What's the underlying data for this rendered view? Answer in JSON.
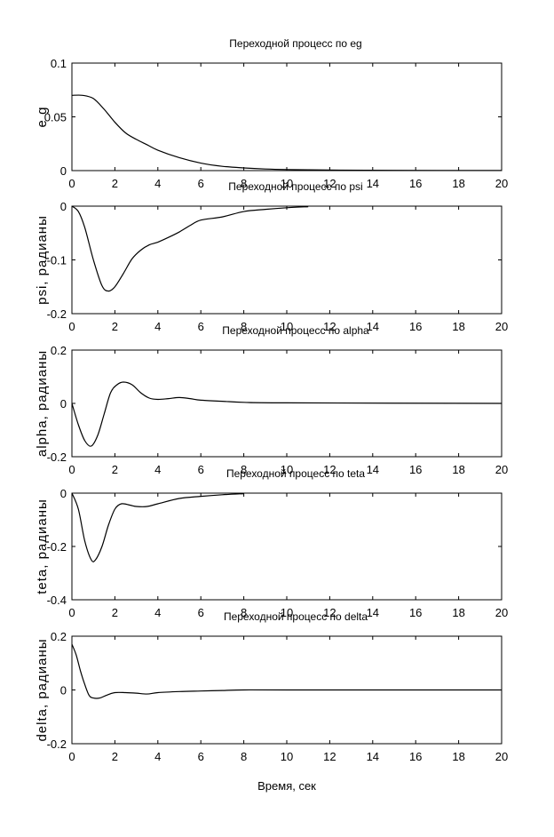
{
  "chart_data": [
    {
      "type": "line",
      "title": "Переходной процесс по eg",
      "xlabel": "",
      "ylabel": "e g",
      "xlim": [
        0,
        20
      ],
      "ylim": [
        0,
        0.1
      ],
      "xticks": [
        0,
        2,
        4,
        6,
        8,
        10,
        12,
        14,
        16,
        18,
        20
      ],
      "xtick_labels": [
        "0",
        "2",
        "4",
        "6",
        "8",
        "10",
        "12",
        "14",
        "16",
        "18",
        "20"
      ],
      "yticks": [
        0,
        0.05,
        0.1
      ],
      "ytick_labels": [
        "0",
        "0.05",
        "0.1"
      ],
      "grid": false,
      "series": [
        {
          "x": [
            0,
            0.5,
            1,
            1.5,
            2,
            2.5,
            3,
            3.5,
            4,
            5,
            6,
            7,
            8,
            9,
            10,
            12,
            15,
            20
          ],
          "y": [
            0.07,
            0.07,
            0.067,
            0.057,
            0.045,
            0.035,
            0.029,
            0.024,
            0.019,
            0.012,
            0.007,
            0.004,
            0.0025,
            0.0015,
            0.001,
            0.0005,
            0.0002,
            0.0001
          ]
        }
      ]
    },
    {
      "type": "line",
      "title": "Переходной процесс по psi",
      "xlabel": "",
      "ylabel": "psi, радианы",
      "xlim": [
        0,
        20
      ],
      "ylim": [
        -0.2,
        0
      ],
      "xticks": [
        0,
        2,
        4,
        6,
        8,
        10,
        12,
        14,
        16,
        18,
        20
      ],
      "xtick_labels": [
        "0",
        "2",
        "4",
        "6",
        "8",
        "10",
        "12",
        "14",
        "16",
        "18",
        "20"
      ],
      "yticks": [
        -0.2,
        -0.1,
        0
      ],
      "ytick_labels": [
        "-0.2",
        "-0.1",
        "0"
      ],
      "grid": false,
      "series": [
        {
          "x": [
            0,
            0.3,
            0.6,
            1,
            1.4,
            1.7,
            2,
            2.4,
            2.8,
            3.2,
            3.6,
            4,
            4.5,
            5,
            5.5,
            6,
            7,
            8,
            9,
            10,
            11
          ],
          "y": [
            0,
            -0.01,
            -0.04,
            -0.1,
            -0.148,
            -0.158,
            -0.15,
            -0.125,
            -0.098,
            -0.082,
            -0.072,
            -0.067,
            -0.058,
            -0.048,
            -0.036,
            -0.026,
            -0.02,
            -0.01,
            -0.006,
            -0.003,
            -0.001
          ]
        }
      ]
    },
    {
      "type": "line",
      "title": "Переходной процесс по alpha",
      "xlabel": "",
      "ylabel": "alpha, радианы",
      "xlim": [
        0,
        20
      ],
      "ylim": [
        -0.2,
        0.2
      ],
      "xticks": [
        0,
        2,
        4,
        6,
        8,
        10,
        12,
        14,
        16,
        18,
        20
      ],
      "xtick_labels": [
        "0",
        "2",
        "4",
        "6",
        "8",
        "10",
        "12",
        "14",
        "16",
        "18",
        "20"
      ],
      "yticks": [
        -0.2,
        0,
        0.2
      ],
      "ytick_labels": [
        "-0.2",
        "0",
        "0.2"
      ],
      "grid": false,
      "series": [
        {
          "x": [
            0,
            0.3,
            0.6,
            0.9,
            1.2,
            1.5,
            1.8,
            2.1,
            2.4,
            2.8,
            3.2,
            3.6,
            4,
            4.5,
            5,
            5.5,
            6,
            7,
            8,
            10,
            20
          ],
          "y": [
            0,
            -0.08,
            -0.14,
            -0.16,
            -0.12,
            -0.04,
            0.04,
            0.07,
            0.08,
            0.07,
            0.04,
            0.02,
            0.015,
            0.018,
            0.022,
            0.018,
            0.012,
            0.008,
            0.004,
            0.002,
            0
          ]
        }
      ]
    },
    {
      "type": "line",
      "title": "Переходной процесс по teta",
      "xlabel": "",
      "ylabel": "teta, радианы",
      "xlim": [
        0,
        20
      ],
      "ylim": [
        -0.4,
        0
      ],
      "xticks": [
        0,
        2,
        4,
        6,
        8,
        10,
        12,
        14,
        16,
        18,
        20
      ],
      "xtick_labels": [
        "0",
        "2",
        "4",
        "6",
        "8",
        "10",
        "12",
        "14",
        "16",
        "18",
        "20"
      ],
      "yticks": [
        -0.4,
        -0.2,
        0
      ],
      "ytick_labels": [
        "-0.4",
        "-0.2",
        "0"
      ],
      "grid": false,
      "series": [
        {
          "x": [
            0,
            0.3,
            0.6,
            0.9,
            1.1,
            1.4,
            1.7,
            2,
            2.3,
            2.7,
            3,
            3.5,
            4,
            5,
            6,
            7,
            8
          ],
          "y": [
            0,
            -0.06,
            -0.18,
            -0.25,
            -0.25,
            -0.2,
            -0.12,
            -0.06,
            -0.04,
            -0.045,
            -0.05,
            -0.05,
            -0.04,
            -0.02,
            -0.012,
            -0.006,
            -0.002
          ]
        }
      ]
    },
    {
      "type": "line",
      "title": "Переходной процесс по delta",
      "xlabel": "Время, сек",
      "ylabel": "delta, радианы",
      "xlim": [
        0,
        20
      ],
      "ylim": [
        -0.2,
        0.2
      ],
      "xticks": [
        0,
        2,
        4,
        6,
        8,
        10,
        12,
        14,
        16,
        18,
        20
      ],
      "xtick_labels": [
        "0",
        "2",
        "4",
        "6",
        "8",
        "10",
        "12",
        "14",
        "16",
        "18",
        "20"
      ],
      "yticks": [
        -0.2,
        0,
        0.2
      ],
      "ytick_labels": [
        "-0.2",
        "0",
        "0.2"
      ],
      "grid": false,
      "series": [
        {
          "x": [
            0,
            0.2,
            0.4,
            0.6,
            0.8,
            1,
            1.3,
            1.6,
            2,
            2.5,
            3,
            3.5,
            4,
            5,
            6,
            7,
            8,
            10,
            20
          ],
          "y": [
            0.17,
            0.13,
            0.07,
            0.02,
            -0.02,
            -0.03,
            -0.03,
            -0.02,
            -0.01,
            -0.01,
            -0.012,
            -0.015,
            -0.01,
            -0.006,
            -0.004,
            -0.002,
            0,
            0,
            0
          ]
        }
      ]
    }
  ]
}
